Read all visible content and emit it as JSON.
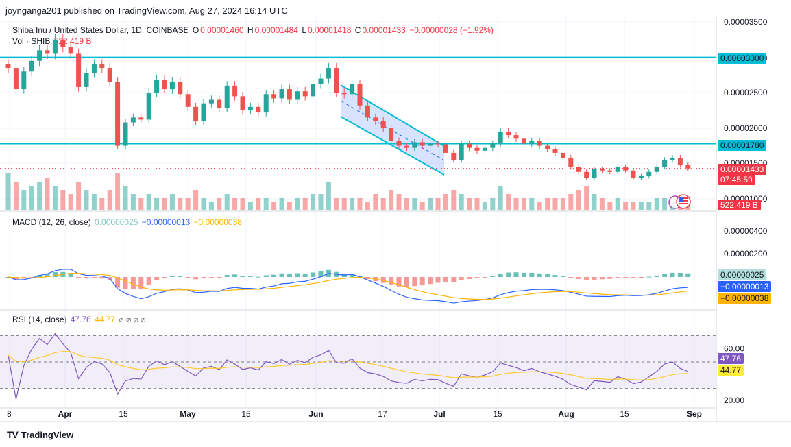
{
  "header": {
    "publisher_line": "joynganga201 published on TradingView.com, Aug 27, 2024 16:14 UTC"
  },
  "legend": {
    "symbol": "Shiba Inu / United States Dollar, 1D, COINBASE",
    "o_label": "O",
    "o": "0.00001460",
    "h_label": "H",
    "h": "0.00001484",
    "l_label": "L",
    "l": "0.00001418",
    "c_label": "C",
    "c": "0.00001433",
    "change": "−0.00000028 (−1.92%)",
    "vol_label": "Vol · SHIB",
    "vol": "522.419 B"
  },
  "macd_legend": {
    "title": "MACD (12, 26, close)",
    "hist": "0.00000025",
    "macd": "−0.00000013",
    "signal": "−0.00000038"
  },
  "rsi_legend": {
    "title": "RSI (14, close)",
    "rsi": "47.76",
    "ma": "44.77",
    "extras": "⌀ ⌀ ⌀ ⌀"
  },
  "tags": {
    "level_high": "0.00003000",
    "level_low": "0.00001780",
    "price": "0.00001433",
    "countdown": "07:45:59",
    "volume": "522.419 B",
    "macd_hist": "0.00000025",
    "macd_line": "−0.00000013",
    "macd_signal": "−0.00000038",
    "rsi": "47.76",
    "rsi_ma": "44.77"
  },
  "footer": {
    "brand": "TradingView",
    "logo": "TV"
  },
  "colors": {
    "up": "#26a69a",
    "down": "#ef5350",
    "level": "#00bcd4",
    "macd": "#2962ff",
    "signal": "#ffb300",
    "rsi": "#7e57c2"
  },
  "chart_data": [
    {
      "type": "candlestick",
      "series": [
        {
          "name": "Shiba Inu / United States Dollar"
        }
      ],
      "x_tick_labels": [
        "8",
        "Apr",
        "15",
        "May",
        "15",
        "Jun",
        "17",
        "Jul",
        "15",
        "Aug",
        "15",
        "Sep"
      ],
      "y_tick_labels": [
        "0.00003500",
        "0.00003000",
        "0.00002500",
        "0.00002000",
        "0.00001500",
        "0.00001000"
      ],
      "ylim": [
        9.7e-06,
        3.55e-05
      ],
      "horizontal_levels": [
        3e-05,
        1.78e-05
      ],
      "closes": [
        2.85e-05,
        2.55e-05,
        2.8e-05,
        2.95e-05,
        3.1e-05,
        3.05e-05,
        3.25e-05,
        3.15e-05,
        3.05e-05,
        2.58e-05,
        2.78e-05,
        2.9e-05,
        2.85e-05,
        2.65e-05,
        1.75e-05,
        2.08e-05,
        2.15e-05,
        2.12e-05,
        2.5e-05,
        2.68e-05,
        2.55e-05,
        2.65e-05,
        2.48e-05,
        2.3e-05,
        2.1e-05,
        2.35e-05,
        2.4e-05,
        2.28e-05,
        2.6e-05,
        2.45e-05,
        2.25e-05,
        2.3e-05,
        2.22e-05,
        2.48e-05,
        2.42e-05,
        2.55e-05,
        2.4e-05,
        2.52e-05,
        2.45e-05,
        2.62e-05,
        2.7e-05,
        2.85e-05,
        2.5e-05,
        2.48e-05,
        2.62e-05,
        2.32e-05,
        2.15e-05,
        2.1e-05,
        2e-05,
        1.82e-05,
        1.75e-05,
        1.72e-05,
        1.8e-05,
        1.75e-05,
        1.78e-05,
        1.77e-05,
        1.65e-05,
        1.55e-05,
        1.78e-05,
        1.72e-05,
        1.68e-05,
        1.72e-05,
        1.78e-05,
        1.95e-05,
        1.9e-05,
        1.85e-05,
        1.78e-05,
        1.82e-05,
        1.75e-05,
        1.7e-05,
        1.65e-05,
        1.58e-05,
        1.45e-05,
        1.38e-05,
        1.3e-05,
        1.42e-05,
        1.4e-05,
        1.38e-05,
        1.45e-05,
        1.4e-05,
        1.3e-05,
        1.32e-05,
        1.38e-05,
        1.45e-05,
        1.55e-05,
        1.58e-05,
        1.48e-05,
        1.43e-05
      ]
    },
    {
      "type": "bar",
      "series": [
        {
          "name": "Vol · SHIB"
        }
      ],
      "values_relative": [
        0.9,
        0.7,
        0.5,
        0.6,
        0.7,
        0.8,
        0.6,
        0.5,
        0.4,
        0.7,
        0.5,
        0.4,
        0.3,
        0.5,
        0.9,
        0.6,
        0.4,
        0.3,
        0.4,
        0.3,
        0.3,
        0.4,
        0.3,
        0.3,
        0.5,
        0.3,
        0.2,
        0.3,
        0.4,
        0.3,
        0.3,
        0.2,
        0.3,
        0.3,
        0.2,
        0.3,
        0.2,
        0.3,
        0.3,
        0.4,
        0.4,
        0.7,
        0.3,
        0.3,
        0.3,
        0.3,
        0.2,
        0.4,
        0.3,
        0.5,
        0.4,
        0.3,
        0.3,
        0.2,
        0.3,
        0.3,
        0.4,
        0.5,
        0.4,
        0.3,
        0.3,
        0.2,
        0.3,
        0.6,
        0.4,
        0.3,
        0.3,
        0.3,
        0.2,
        0.3,
        0.3,
        0.3,
        0.4,
        0.5,
        0.6,
        0.4,
        0.3,
        0.2,
        0.3,
        0.2,
        0.2,
        0.2,
        0.2,
        0.3,
        0.3,
        0.3,
        0.2,
        0.2
      ]
    },
    {
      "type": "line",
      "series": [
        {
          "name": "MACD"
        },
        {
          "name": "Signal"
        }
      ],
      "y_tick_labels": [
        "0.00000400",
        "0.00000200"
      ]
    },
    {
      "type": "line",
      "series": [
        {
          "name": "RSI"
        },
        {
          "name": "RSI-based MA"
        }
      ],
      "y_tick_labels": [
        "60.00",
        "20.00"
      ],
      "ylim": [
        20,
        80
      ],
      "bands": [
        70,
        50,
        30
      ]
    }
  ]
}
